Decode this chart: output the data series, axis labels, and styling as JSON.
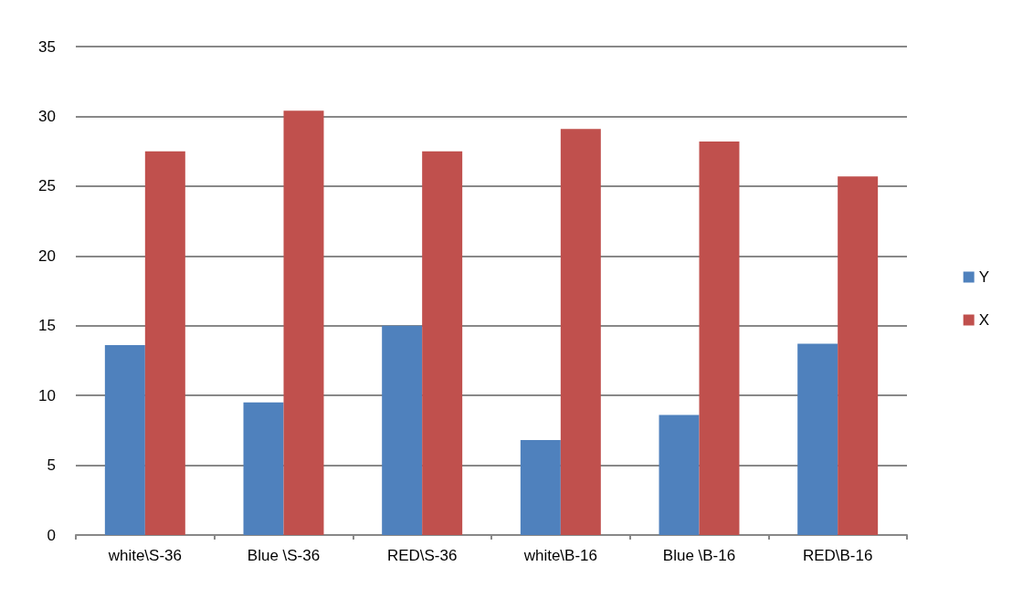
{
  "chart_data": {
    "type": "bar",
    "categories": [
      "white\\S-36",
      "Blue \\S-36",
      "RED\\S-36",
      "white\\B-16",
      "Blue \\B-16",
      "RED\\B-16"
    ],
    "series": [
      {
        "name": "Y",
        "color": "#4f81bd",
        "values": [
          13.6,
          9.5,
          15.0,
          6.8,
          8.6,
          13.7
        ]
      },
      {
        "name": "X",
        "color": "#c0504d",
        "values": [
          27.5,
          30.4,
          27.5,
          29.1,
          28.2,
          25.7
        ]
      }
    ],
    "ylim": [
      0,
      35
    ],
    "yticks": [
      0,
      5,
      10,
      15,
      20,
      25,
      30,
      35
    ],
    "grid": "y",
    "legend": "right"
  }
}
